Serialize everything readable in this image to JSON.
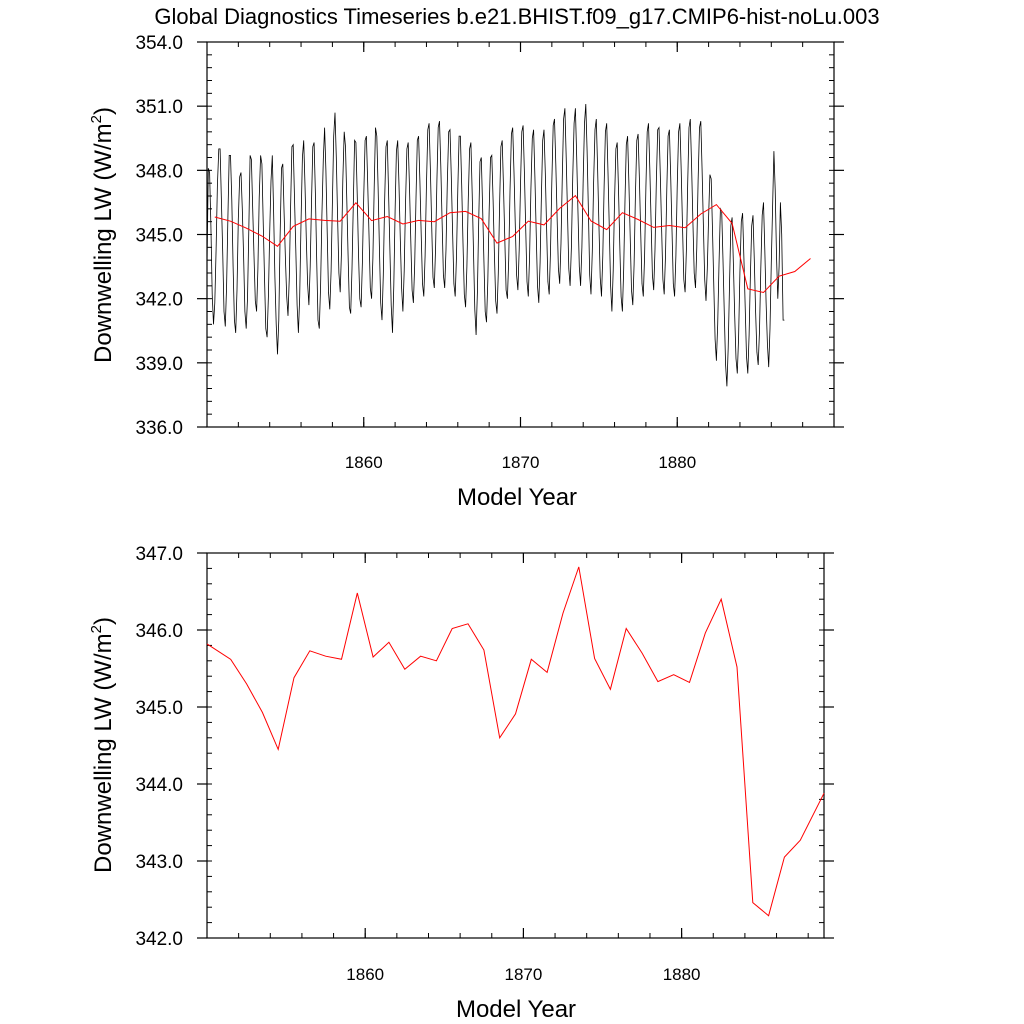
{
  "title": "Global Diagnostics Timeseries b.e21.BHIST.f09_g17.CMIP6-hist-noLu.003",
  "chart_data": [
    {
      "type": "line",
      "xlabel": "Model Year",
      "ylabel_main": "Downwelling LW (W/m",
      "ylabel_sup": "2",
      "ylabel_close": ")",
      "xlim": [
        1850,
        1890
      ],
      "ylim": [
        336.0,
        354.0
      ],
      "x_ticks": [
        1860,
        1870,
        1880
      ],
      "x_tick_labels": [
        "1860",
        "1870",
        "1880"
      ],
      "y_ticks": [
        336.0,
        339.0,
        342.0,
        345.0,
        348.0,
        351.0,
        354.0
      ],
      "y_tick_labels": [
        "336.0",
        "339.0",
        "342.0",
        "345.0",
        "348.0",
        "351.0",
        "354.0"
      ],
      "series": [
        {
          "kind": "monthly",
          "color": "#000000",
          "x_start": 1850.0,
          "x_step": 0.0833333,
          "values": [
            343.5,
            348.1,
            347.9,
            345.4,
            342.2,
            340.8,
            341.8,
            344.3,
            347.3,
            349.0,
            349.0,
            346.6,
            344.2,
            341.4,
            340.7,
            342.6,
            345.8,
            348.7,
            348.7,
            346.6,
            343.5,
            341.0,
            340.4,
            342.4,
            345.7,
            347.7,
            347.9,
            346.2,
            344.0,
            341.4,
            340.6,
            342.0,
            345.2,
            348.7,
            348.5,
            346.2,
            344.0,
            341.9,
            341.4,
            343.4,
            346.7,
            348.7,
            348.3,
            345.6,
            343.0,
            340.6,
            340.2,
            342.1,
            345.1,
            347.5,
            348.7,
            346.1,
            343.0,
            340.8,
            339.4,
            341.0,
            344.9,
            348.1,
            348.3,
            346.0,
            343.9,
            342.1,
            341.2,
            343.0,
            346.3,
            349.1,
            349.2,
            346.7,
            344.3,
            341.7,
            340.4,
            342.1,
            345.5,
            348.6,
            349.4,
            347.3,
            344.8,
            342.7,
            341.7,
            343.5,
            346.5,
            349.1,
            349.3,
            346.9,
            343.8,
            341.0,
            340.6,
            342.6,
            345.9,
            348.5,
            350.0,
            348.0,
            345.1,
            342.3,
            341.5,
            343.3,
            346.5,
            349.6,
            350.7,
            348.6,
            345.8,
            343.2,
            342.3,
            344.2,
            347.5,
            349.8,
            349.1,
            346.6,
            344.0,
            341.6,
            341.3,
            343.4,
            346.4,
            349.4,
            349.3,
            346.9,
            344.1,
            342.0,
            341.6,
            343.7,
            346.7,
            349.4,
            349.6,
            347.4,
            345.0,
            342.5,
            342.0,
            343.9,
            347.2,
            350.0,
            349.6,
            347.2,
            344.4,
            341.8,
            341.0,
            343.1,
            346.5,
            349.1,
            349.4,
            346.9,
            344.3,
            341.7,
            340.4,
            342.6,
            346.1,
            348.9,
            349.4,
            347.3,
            344.8,
            342.5,
            341.4,
            343.3,
            346.4,
            349.0,
            349.3,
            347.2,
            344.7,
            342.4,
            341.8,
            343.6,
            346.7,
            349.4,
            349.6,
            347.5,
            345.0,
            342.7,
            342.1,
            344.0,
            347.2,
            349.9,
            350.2,
            348.0,
            345.4,
            343.0,
            342.5,
            344.4,
            347.5,
            350.0,
            350.3,
            348.2,
            345.6,
            343.1,
            342.5,
            344.3,
            347.4,
            349.8,
            349.9,
            347.7,
            345.1,
            342.7,
            342.1,
            344.0,
            347.1,
            349.6,
            349.6,
            347.3,
            344.6,
            342.2,
            341.6,
            343.5,
            346.5,
            349.0,
            349.3,
            346.9,
            344.2,
            341.5,
            340.3,
            342.3,
            345.6,
            348.4,
            348.6,
            346.3,
            343.8,
            341.4,
            340.9,
            342.8,
            346.0,
            348.6,
            348.7,
            346.6,
            344.1,
            341.9,
            341.3,
            343.2,
            346.4,
            349.1,
            349.4,
            347.2,
            344.8,
            342.4,
            342.0,
            343.8,
            347.0,
            349.7,
            350.0,
            347.9,
            345.4,
            343.1,
            342.4,
            344.3,
            347.3,
            349.8,
            350.1,
            347.9,
            345.3,
            342.8,
            342.1,
            344.0,
            347.1,
            349.5,
            349.9,
            347.7,
            345.1,
            342.6,
            341.8,
            343.7,
            346.8,
            349.4,
            349.9,
            347.9,
            345.3,
            342.8,
            342.2,
            344.2,
            347.4,
            350.1,
            350.4,
            348.3,
            345.8,
            343.4,
            342.7,
            344.6,
            347.7,
            350.4,
            350.9,
            348.6,
            346.0,
            343.4,
            342.6,
            344.4,
            347.6,
            350.2,
            350.9,
            348.6,
            346.0,
            343.5,
            342.6,
            344.4,
            347.6,
            350.2,
            351.1,
            348.9,
            346.1,
            343.1,
            342.2,
            344.2,
            347.4,
            349.9,
            350.4,
            348.1,
            345.5,
            343.0,
            342.1,
            344.0,
            347.2,
            349.8,
            350.2,
            347.9,
            345.3,
            342.6,
            341.4,
            343.3,
            346.5,
            349.0,
            349.3,
            347.1,
            344.5,
            342.1,
            341.4,
            343.4,
            346.6,
            349.2,
            349.6,
            347.4,
            344.9,
            342.4,
            341.7,
            343.6,
            346.8,
            349.4,
            349.7,
            347.6,
            345.1,
            342.7,
            342.1,
            344.0,
            347.2,
            349.8,
            350.2,
            348.1,
            345.6,
            343.1,
            342.4,
            344.3,
            347.4,
            349.9,
            350.0,
            347.8,
            345.3,
            342.9,
            342.2,
            344.0,
            347.1,
            349.6,
            349.9,
            347.7,
            345.2,
            342.7,
            342.1,
            344.0,
            347.2,
            349.8,
            350.2,
            348.0,
            345.4,
            342.9,
            342.3,
            344.3,
            347.4,
            350.0,
            350.4,
            348.2,
            345.6,
            343.2,
            342.5,
            344.4,
            347.5,
            350.0,
            350.3,
            348.0,
            345.4,
            342.9,
            341.9,
            343.4,
            345.8,
            347.8,
            347.6,
            345.2,
            342.6,
            340.1,
            339.1,
            340.8,
            343.6,
            346.2,
            346.1,
            343.8,
            341.3,
            338.9,
            337.9,
            339.7,
            342.6,
            345.4,
            345.8,
            343.6,
            341.2,
            339.2,
            338.5,
            340.2,
            343.2,
            345.6,
            346.0,
            343.9,
            341.6,
            339.3,
            338.5,
            340.3,
            343.1,
            345.4,
            345.9,
            343.8,
            341.4,
            339.5,
            338.9,
            340.5,
            343.4,
            345.9,
            346.5,
            344.3,
            341.8,
            339.9,
            338.8,
            340.6,
            343.7,
            346.3,
            348.9,
            347.1,
            344.0,
            342.0,
            343.5,
            346.5,
            345.0,
            341.0,
            341.0
          ]
        },
        {
          "kind": "annual",
          "color": "#ff0000",
          "x": [
            1850.5,
            1851.5,
            1852.5,
            1853.5,
            1854.5,
            1855.5,
            1856.5,
            1857.5,
            1858.5,
            1859.5,
            1860.5,
            1861.5,
            1862.5,
            1863.5,
            1864.5,
            1865.5,
            1866.5,
            1867.5,
            1868.5,
            1869.5,
            1870.5,
            1871.5,
            1872.5,
            1873.5,
            1874.5,
            1875.5,
            1876.5,
            1877.5,
            1878.5,
            1879.5,
            1880.5,
            1881.5,
            1882.5,
            1883.5,
            1884.5,
            1885.5,
            1886.5,
            1887.5,
            1888.5
          ],
          "values": [
            345.82,
            345.62,
            345.3,
            344.93,
            344.45,
            345.38,
            345.73,
            345.66,
            345.62,
            346.48,
            345.65,
            345.84,
            345.49,
            345.66,
            345.6,
            346.02,
            346.08,
            345.74,
            344.6,
            344.91,
            345.62,
            345.45,
            346.22,
            346.82,
            345.63,
            345.23,
            346.02,
            345.7,
            345.33,
            345.42,
            345.32,
            345.96,
            346.4,
            345.52,
            342.46,
            342.29,
            343.05,
            343.27,
            343.88
          ]
        }
      ]
    },
    {
      "type": "line",
      "xlabel": "Model Year",
      "ylabel_main": "Downwelling LW (W/m",
      "ylabel_sup": "2",
      "ylabel_close": ")",
      "xlim": [
        1850,
        1889
      ],
      "ylim": [
        342.0,
        347.0
      ],
      "x_ticks": [
        1860,
        1870,
        1880
      ],
      "x_tick_labels": [
        "1860",
        "1870",
        "1880"
      ],
      "y_ticks": [
        342.0,
        343.0,
        344.0,
        345.0,
        346.0,
        347.0
      ],
      "y_tick_labels": [
        "342.0",
        "343.0",
        "344.0",
        "345.0",
        "346.0",
        "347.0"
      ],
      "series": [
        {
          "kind": "annual",
          "color": "#ff0000",
          "x": [
            1850.0,
            1851.5,
            1852.5,
            1853.5,
            1854.5,
            1855.5,
            1856.5,
            1857.5,
            1858.5,
            1859.5,
            1860.5,
            1861.5,
            1862.5,
            1863.5,
            1864.5,
            1865.5,
            1866.5,
            1867.5,
            1868.5,
            1869.5,
            1870.5,
            1871.5,
            1872.5,
            1873.5,
            1874.5,
            1875.5,
            1876.5,
            1877.5,
            1878.5,
            1879.5,
            1880.5,
            1881.5,
            1882.5,
            1883.5,
            1884.5,
            1885.5,
            1886.5,
            1887.5,
            1889.0
          ],
          "values": [
            345.82,
            345.62,
            345.3,
            344.93,
            344.45,
            345.38,
            345.73,
            345.66,
            345.62,
            346.48,
            345.65,
            345.84,
            345.49,
            345.66,
            345.6,
            346.02,
            346.08,
            345.74,
            344.6,
            344.91,
            345.62,
            345.45,
            346.22,
            346.82,
            345.63,
            345.23,
            346.02,
            345.7,
            345.33,
            345.42,
            345.32,
            345.96,
            346.4,
            345.52,
            342.46,
            342.29,
            343.05,
            343.27,
            343.88
          ]
        }
      ]
    }
  ]
}
